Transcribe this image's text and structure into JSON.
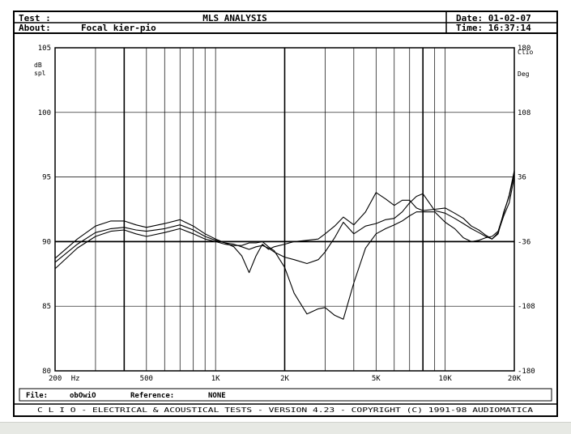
{
  "header": {
    "test_label": "Test :",
    "title": "MLS ANALYSIS",
    "date_label": "Date: 01-02-07",
    "about_label": "About:",
    "about_value": "Focal kier-pio",
    "time_label": "Time: 16:37:14"
  },
  "footer": {
    "file_label": "File:",
    "file_value": "obOwiO",
    "reference_label": "Reference:",
    "reference_value": "NONE",
    "credits": "C L I O  -  ELECTRICAL & ACOUSTICAL TESTS  -  VERSION 4.23  -  COPYRIGHT (C) 1991-98 AUDIOMATICA"
  },
  "chart_data": {
    "type": "line",
    "x_scale": "log",
    "xlim": [
      200,
      20000
    ],
    "ylim": [
      80,
      105
    ],
    "ylabel_left": "dB spl",
    "ylabel_right_top": "Clio",
    "ylabel_right_unit": "Deg",
    "x_tick_labels": [
      {
        "x": 200,
        "label": "200"
      },
      {
        "x": 220,
        "label": "Hz"
      },
      {
        "x": 500,
        "label": "500"
      },
      {
        "x": 1000,
        "label": "1K"
      },
      {
        "x": 2000,
        "label": "2K"
      },
      {
        "x": 5000,
        "label": "5K"
      },
      {
        "x": 10000,
        "label": "10K"
      },
      {
        "x": 20000,
        "label": "20K"
      }
    ],
    "y_left_ticks": [
      {
        "y": 105,
        "label": "105"
      },
      {
        "y": 100,
        "label": "100"
      },
      {
        "y": 95,
        "label": "95"
      },
      {
        "y": 90,
        "label": "90"
      },
      {
        "y": 85,
        "label": "85"
      },
      {
        "y": 80,
        "label": "80"
      }
    ],
    "y_right_ticks": [
      {
        "y": 105,
        "label": "180"
      },
      {
        "y": 100,
        "label": "108"
      },
      {
        "y": 95,
        "label": "36"
      },
      {
        "y": 90,
        "label": "-36"
      },
      {
        "y": 85,
        "label": "-108"
      },
      {
        "y": 80,
        "label": "-180"
      }
    ],
    "reference_line_y": 90,
    "grid": true,
    "series": [
      {
        "points": [
          [
            200,
            88.7
          ],
          [
            250,
            90.2
          ],
          [
            300,
            91.2
          ],
          [
            350,
            91.6
          ],
          [
            400,
            91.6
          ],
          [
            450,
            91.3
          ],
          [
            500,
            91.1
          ],
          [
            600,
            91.4
          ],
          [
            700,
            91.7
          ],
          [
            800,
            91.2
          ],
          [
            900,
            90.6
          ],
          [
            1000,
            90.2
          ],
          [
            1100,
            89.9
          ],
          [
            1200,
            89.6
          ],
          [
            1300,
            88.9
          ],
          [
            1400,
            87.6
          ],
          [
            1500,
            88.9
          ],
          [
            1600,
            89.8
          ],
          [
            1700,
            89.4
          ],
          [
            1800,
            89.6
          ],
          [
            2000,
            89.8
          ],
          [
            2200,
            90.0
          ],
          [
            2500,
            90.1
          ],
          [
            2800,
            90.2
          ],
          [
            3000,
            90.6
          ],
          [
            3300,
            91.2
          ],
          [
            3600,
            91.9
          ],
          [
            4000,
            91.3
          ],
          [
            4500,
            92.3
          ],
          [
            5000,
            93.8
          ],
          [
            5500,
            93.3
          ],
          [
            6000,
            92.8
          ],
          [
            6500,
            93.2
          ],
          [
            7000,
            93.2
          ],
          [
            7500,
            92.6
          ],
          [
            8000,
            92.4
          ],
          [
            9000,
            92.5
          ],
          [
            10000,
            92.6
          ],
          [
            11000,
            92.2
          ],
          [
            12000,
            91.8
          ],
          [
            13000,
            91.2
          ],
          [
            14000,
            90.9
          ],
          [
            15000,
            90.5
          ],
          [
            16000,
            90.2
          ],
          [
            17000,
            90.6
          ],
          [
            18000,
            92.3
          ],
          [
            19000,
            93.5
          ],
          [
            20000,
            95.3
          ]
        ]
      },
      {
        "points": [
          [
            200,
            88.4
          ],
          [
            250,
            89.8
          ],
          [
            300,
            90.7
          ],
          [
            350,
            91.0
          ],
          [
            400,
            91.1
          ],
          [
            450,
            90.9
          ],
          [
            500,
            90.8
          ],
          [
            600,
            91.0
          ],
          [
            700,
            91.3
          ],
          [
            800,
            90.9
          ],
          [
            900,
            90.4
          ],
          [
            1000,
            90.1
          ],
          [
            1100,
            89.9
          ],
          [
            1200,
            89.8
          ],
          [
            1300,
            89.6
          ],
          [
            1400,
            89.4
          ],
          [
            1500,
            89.6
          ],
          [
            1600,
            89.7
          ],
          [
            1700,
            89.5
          ],
          [
            1800,
            89.2
          ],
          [
            2000,
            88.8
          ],
          [
            2200,
            88.6
          ],
          [
            2500,
            88.3
          ],
          [
            2800,
            88.6
          ],
          [
            3000,
            89.2
          ],
          [
            3300,
            90.3
          ],
          [
            3600,
            91.5
          ],
          [
            4000,
            90.6
          ],
          [
            4500,
            91.2
          ],
          [
            5000,
            91.4
          ],
          [
            5500,
            91.7
          ],
          [
            6000,
            91.8
          ],
          [
            6500,
            92.3
          ],
          [
            7000,
            93.0
          ],
          [
            7500,
            93.5
          ],
          [
            8000,
            93.7
          ],
          [
            9000,
            92.4
          ],
          [
            10000,
            92.2
          ],
          [
            11000,
            91.8
          ],
          [
            12000,
            91.4
          ],
          [
            13000,
            91.0
          ],
          [
            14000,
            90.7
          ],
          [
            15000,
            90.4
          ],
          [
            16000,
            90.2
          ],
          [
            17000,
            90.7
          ],
          [
            18000,
            92.0
          ],
          [
            19000,
            93.0
          ],
          [
            20000,
            95.0
          ]
        ]
      },
      {
        "points": [
          [
            200,
            87.9
          ],
          [
            250,
            89.5
          ],
          [
            300,
            90.4
          ],
          [
            350,
            90.8
          ],
          [
            400,
            90.9
          ],
          [
            450,
            90.6
          ],
          [
            500,
            90.4
          ],
          [
            600,
            90.7
          ],
          [
            700,
            91.0
          ],
          [
            800,
            90.6
          ],
          [
            900,
            90.2
          ],
          [
            1000,
            90.0
          ],
          [
            1100,
            89.8
          ],
          [
            1200,
            89.7
          ],
          [
            1300,
            89.7
          ],
          [
            1400,
            89.9
          ],
          [
            1500,
            89.9
          ],
          [
            1600,
            90.0
          ],
          [
            1700,
            89.6
          ],
          [
            1800,
            89.3
          ],
          [
            2000,
            88.0
          ],
          [
            2200,
            86.0
          ],
          [
            2500,
            84.4
          ],
          [
            2800,
            84.8
          ],
          [
            3000,
            84.9
          ],
          [
            3300,
            84.3
          ],
          [
            3600,
            84.0
          ],
          [
            4000,
            86.8
          ],
          [
            4500,
            89.5
          ],
          [
            5000,
            90.6
          ],
          [
            5500,
            91.0
          ],
          [
            6000,
            91.3
          ],
          [
            6500,
            91.6
          ],
          [
            7000,
            92.0
          ],
          [
            7500,
            92.3
          ],
          [
            8000,
            92.3
          ],
          [
            9000,
            92.3
          ],
          [
            10000,
            91.5
          ],
          [
            11000,
            91.0
          ],
          [
            12000,
            90.3
          ],
          [
            13000,
            90.0
          ],
          [
            14000,
            90.1
          ],
          [
            15000,
            90.3
          ],
          [
            16000,
            90.4
          ],
          [
            17000,
            90.8
          ],
          [
            18000,
            92.2
          ],
          [
            19000,
            93.6
          ],
          [
            20000,
            95.5
          ]
        ]
      }
    ]
  }
}
